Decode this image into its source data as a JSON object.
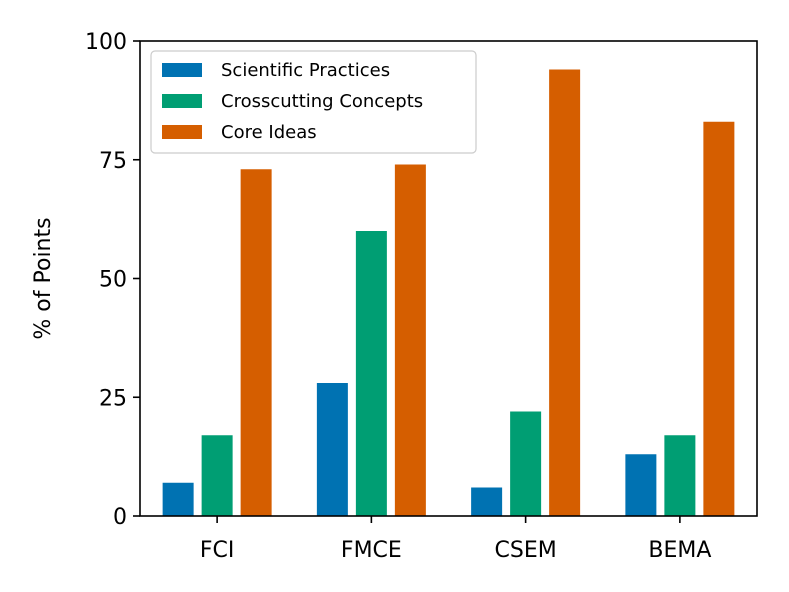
{
  "chart_data": {
    "type": "bar",
    "title": "",
    "xlabel": "",
    "ylabel": "% of Points",
    "categories": [
      "FCI",
      "FMCE",
      "CSEM",
      "BEMA"
    ],
    "series": [
      {
        "name": "Scientific Practices",
        "color": "#0072b2",
        "values": [
          7,
          28,
          6,
          13
        ]
      },
      {
        "name": "Crosscutting Concepts",
        "color": "#009e73",
        "values": [
          17,
          60,
          22,
          17
        ]
      },
      {
        "name": "Core Ideas",
        "color": "#d55e00",
        "values": [
          73,
          74,
          94,
          83
        ]
      }
    ],
    "ylim": [
      0,
      100
    ],
    "yticks": [
      0,
      25,
      50,
      75,
      100
    ],
    "grid": false,
    "legend_position": "top-left"
  }
}
